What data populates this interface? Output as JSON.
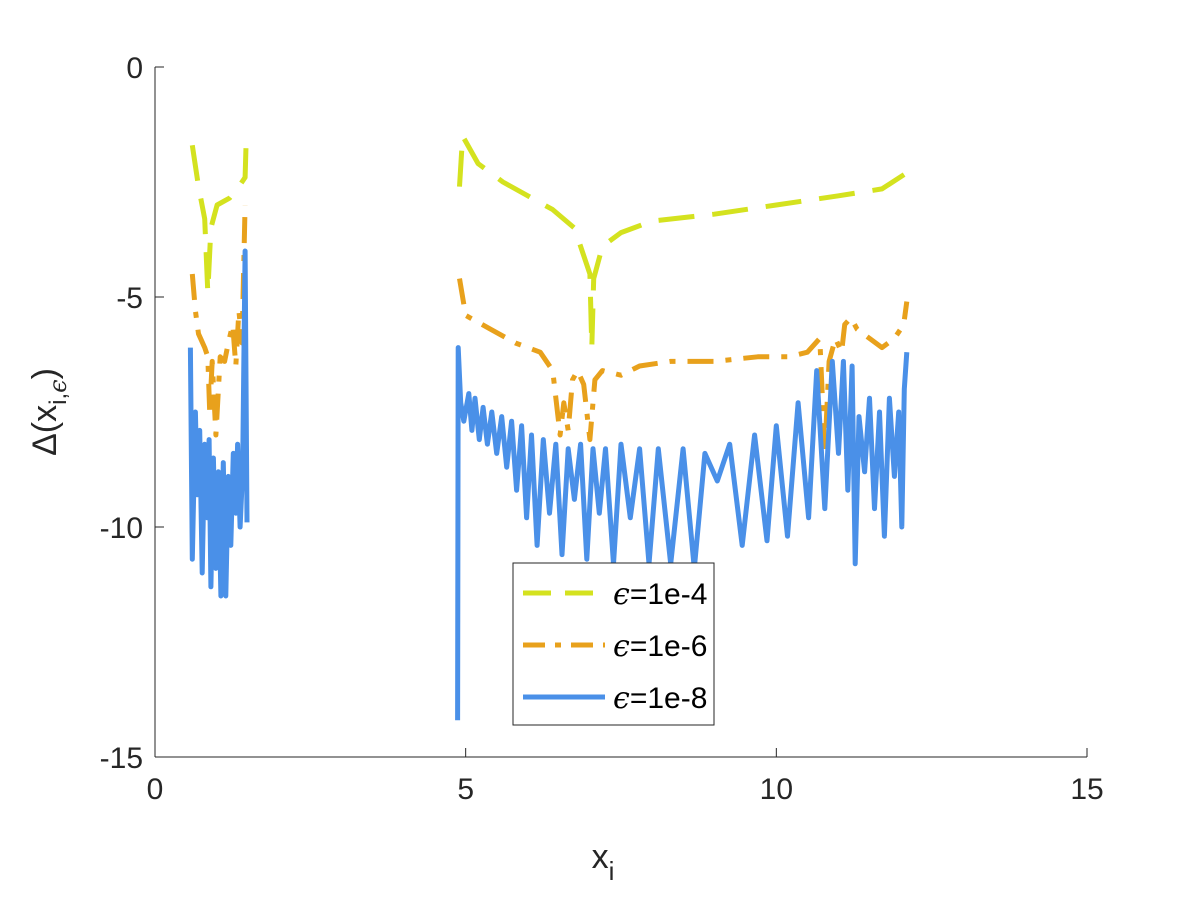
{
  "chart_data": {
    "type": "line",
    "title": "",
    "xlabel": "x",
    "xlabel_sub": "i",
    "ylabel_main": "Δ(x",
    "ylabel_sub1": "i",
    "ylabel_mid": ",",
    "ylabel_sub2": "ϵ",
    "ylabel_end": ")",
    "xlim": [
      0,
      15
    ],
    "ylim": [
      -15,
      0
    ],
    "xticks": [
      0,
      5,
      10,
      15
    ],
    "yticks": [
      0,
      -5,
      -10,
      -15
    ],
    "xtick_labels": [
      "0",
      "5",
      "10",
      "15"
    ],
    "ytick_labels": [
      "0",
      "-5",
      "-10",
      "-15"
    ],
    "grid": false,
    "legend_position": "bottom-center",
    "series": [
      {
        "name": "ϵ=1e-4",
        "legend_symbol": "ϵ",
        "legend_text": "=1e-4",
        "color": "#D4E21F",
        "style": "dashed",
        "segments": [
          [
            [
              0.6,
              -1.7
            ],
            [
              0.7,
              -2.6
            ],
            [
              0.8,
              -3.3
            ],
            [
              0.85,
              -4.9
            ],
            [
              0.9,
              -3.5
            ],
            [
              1.0,
              -3.0
            ],
            [
              1.2,
              -2.85
            ],
            [
              1.35,
              -2.6
            ],
            [
              1.45,
              -2.4
            ],
            [
              1.47,
              -1.5
            ]
          ],
          [
            [
              4.9,
              -2.6
            ],
            [
              4.95,
              -1.5
            ],
            [
              5.2,
              -2.1
            ],
            [
              5.6,
              -2.5
            ],
            [
              6.0,
              -2.8
            ],
            [
              6.4,
              -3.1
            ],
            [
              6.75,
              -3.5
            ],
            [
              6.9,
              -4.1
            ],
            [
              7.0,
              -4.5
            ],
            [
              7.03,
              -6.1
            ],
            [
              7.06,
              -4.6
            ],
            [
              7.2,
              -3.9
            ],
            [
              7.5,
              -3.6
            ],
            [
              8.0,
              -3.35
            ],
            [
              9.0,
              -3.2
            ],
            [
              10.0,
              -3.0
            ],
            [
              11.0,
              -2.8
            ],
            [
              11.7,
              -2.65
            ],
            [
              12.1,
              -2.3
            ]
          ]
        ]
      },
      {
        "name": "ϵ=1e-6",
        "legend_symbol": "ϵ",
        "legend_text": "=1e-6",
        "color": "#E8A11C",
        "style": "dashdot",
        "segments": [
          [
            [
              0.6,
              -4.5
            ],
            [
              0.65,
              -5.3
            ],
            [
              0.7,
              -5.8
            ],
            [
              0.8,
              -6.1
            ],
            [
              0.85,
              -6.3
            ],
            [
              0.88,
              -7.5
            ],
            [
              0.92,
              -6.4
            ],
            [
              0.98,
              -8.0
            ],
            [
              1.05,
              -6.3
            ],
            [
              1.12,
              -6.4
            ],
            [
              1.18,
              -6.0
            ],
            [
              1.25,
              -5.6
            ],
            [
              1.3,
              -6.5
            ],
            [
              1.35,
              -5.3
            ],
            [
              1.4,
              -6.0
            ],
            [
              1.45,
              -3.0
            ]
          ],
          [
            [
              4.9,
              -4.6
            ],
            [
              5.0,
              -5.4
            ],
            [
              5.4,
              -5.7
            ],
            [
              5.8,
              -6.0
            ],
            [
              6.2,
              -6.2
            ],
            [
              6.4,
              -6.6
            ],
            [
              6.52,
              -8.0
            ],
            [
              6.58,
              -7.3
            ],
            [
              6.65,
              -7.9
            ],
            [
              6.72,
              -6.8
            ],
            [
              6.8,
              -6.6
            ],
            [
              6.9,
              -6.9
            ],
            [
              7.0,
              -8.1
            ],
            [
              7.08,
              -6.8
            ],
            [
              7.2,
              -6.6
            ],
            [
              7.5,
              -6.7
            ],
            [
              7.8,
              -6.5
            ],
            [
              8.3,
              -6.4
            ],
            [
              9.0,
              -6.4
            ],
            [
              9.7,
              -6.3
            ],
            [
              10.2,
              -6.3
            ],
            [
              10.5,
              -6.2
            ],
            [
              10.7,
              -5.9
            ],
            [
              10.78,
              -8.4
            ],
            [
              10.85,
              -6.4
            ],
            [
              10.95,
              -5.9
            ],
            [
              11.05,
              -6.2
            ],
            [
              11.1,
              -5.6
            ],
            [
              11.2,
              -5.45
            ],
            [
              11.3,
              -5.7
            ],
            [
              11.5,
              -5.9
            ],
            [
              11.7,
              -6.1
            ],
            [
              11.9,
              -5.9
            ],
            [
              12.05,
              -5.6
            ],
            [
              12.1,
              -5.1
            ]
          ]
        ]
      },
      {
        "name": "ϵ=1e-8",
        "legend_symbol": "ϵ",
        "legend_text": "=1e-8",
        "color": "#4A90E8",
        "style": "solid",
        "segments": [
          [
            [
              0.57,
              -6.1
            ],
            [
              0.6,
              -10.7
            ],
            [
              0.65,
              -7.5
            ],
            [
              0.68,
              -9.3
            ],
            [
              0.72,
              -7.9
            ],
            [
              0.76,
              -11.0
            ],
            [
              0.8,
              -8.2
            ],
            [
              0.84,
              -9.8
            ],
            [
              0.87,
              -8.1
            ],
            [
              0.9,
              -11.3
            ],
            [
              0.94,
              -8.5
            ],
            [
              0.98,
              -10.9
            ],
            [
              1.02,
              -8.8
            ],
            [
              1.06,
              -11.5
            ],
            [
              1.1,
              -8.6
            ],
            [
              1.14,
              -11.5
            ],
            [
              1.18,
              -8.9
            ],
            [
              1.22,
              -10.4
            ],
            [
              1.26,
              -8.4
            ],
            [
              1.3,
              -9.7
            ],
            [
              1.33,
              -8.2
            ],
            [
              1.37,
              -10.0
            ],
            [
              1.41,
              -8.8
            ],
            [
              1.45,
              -4.0
            ],
            [
              1.48,
              -9.9
            ]
          ],
          [
            [
              4.87,
              -14.2
            ],
            [
              4.88,
              -6.1
            ],
            [
              4.92,
              -7.3
            ],
            [
              4.97,
              -7.7
            ],
            [
              5.05,
              -7.1
            ],
            [
              5.1,
              -7.9
            ],
            [
              5.15,
              -7.2
            ],
            [
              5.22,
              -8.1
            ],
            [
              5.28,
              -7.4
            ],
            [
              5.35,
              -8.2
            ],
            [
              5.42,
              -7.5
            ],
            [
              5.5,
              -8.4
            ],
            [
              5.58,
              -7.6
            ],
            [
              5.66,
              -8.7
            ],
            [
              5.74,
              -7.7
            ],
            [
              5.82,
              -9.2
            ],
            [
              5.9,
              -7.8
            ],
            [
              5.98,
              -9.8
            ],
            [
              6.06,
              -8.0
            ],
            [
              6.15,
              -10.4
            ],
            [
              6.25,
              -8.1
            ],
            [
              6.35,
              -9.7
            ],
            [
              6.45,
              -8.2
            ],
            [
              6.55,
              -10.6
            ],
            [
              6.65,
              -8.3
            ],
            [
              6.75,
              -9.4
            ],
            [
              6.85,
              -8.2
            ],
            [
              6.95,
              -10.7
            ],
            [
              7.05,
              -8.3
            ],
            [
              7.15,
              -9.7
            ],
            [
              7.25,
              -8.3
            ],
            [
              7.38,
              -10.8
            ],
            [
              7.5,
              -8.2
            ],
            [
              7.65,
              -9.8
            ],
            [
              7.8,
              -8.3
            ],
            [
              7.95,
              -10.8
            ],
            [
              8.1,
              -8.3
            ],
            [
              8.3,
              -10.8
            ],
            [
              8.5,
              -8.3
            ],
            [
              8.68,
              -10.9
            ],
            [
              8.85,
              -8.4
            ],
            [
              9.05,
              -9.0
            ],
            [
              9.25,
              -8.2
            ],
            [
              9.45,
              -10.4
            ],
            [
              9.65,
              -8.0
            ],
            [
              9.85,
              -10.3
            ],
            [
              10.0,
              -7.8
            ],
            [
              10.18,
              -10.2
            ],
            [
              10.35,
              -7.3
            ],
            [
              10.52,
              -9.8
            ],
            [
              10.65,
              -6.6
            ],
            [
              10.78,
              -9.6
            ],
            [
              10.9,
              -6.4
            ],
            [
              11.0,
              -8.4
            ],
            [
              11.08,
              -6.4
            ],
            [
              11.15,
              -9.2
            ],
            [
              11.22,
              -6.5
            ],
            [
              11.27,
              -10.8
            ],
            [
              11.33,
              -7.6
            ],
            [
              11.42,
              -8.8
            ],
            [
              11.5,
              -7.2
            ],
            [
              11.58,
              -9.6
            ],
            [
              11.66,
              -7.5
            ],
            [
              11.74,
              -10.2
            ],
            [
              11.82,
              -7.2
            ],
            [
              11.9,
              -8.9
            ],
            [
              11.97,
              -7.5
            ],
            [
              12.02,
              -10.0
            ],
            [
              12.06,
              -7.0
            ],
            [
              12.1,
              -6.2
            ]
          ]
        ]
      }
    ]
  }
}
